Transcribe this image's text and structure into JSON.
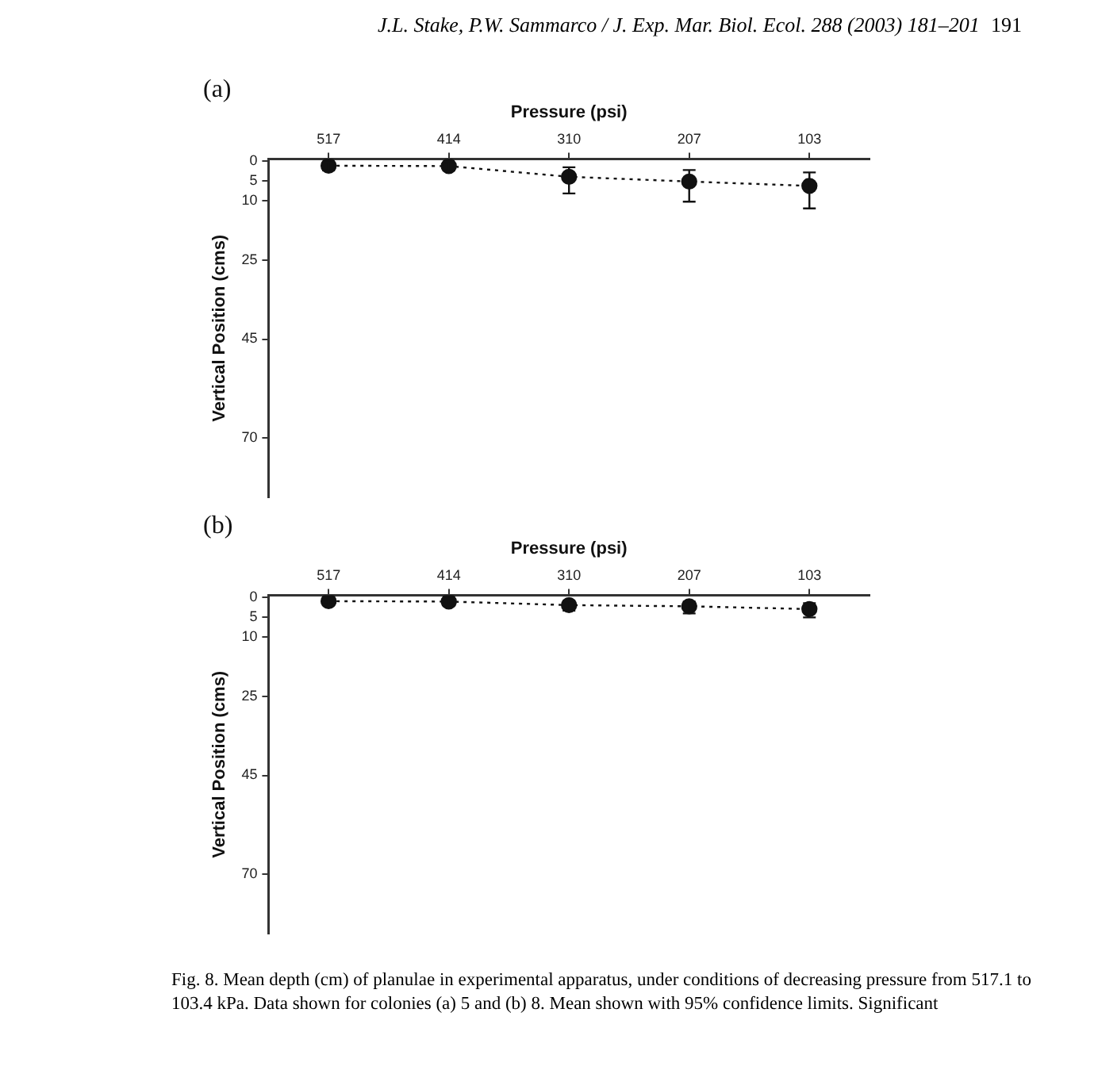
{
  "chart_data": [
    {
      "type": "line",
      "title": "(a)",
      "xlabel": "Pressure (psi)",
      "ylabel": "Vertical Position (cms)",
      "categories": [
        "517",
        "414",
        "310",
        "207",
        "103"
      ],
      "series": [
        {
          "color": "#111111",
          "values": [
            1.2,
            1.3,
            4.0,
            5.2,
            6.3
          ],
          "errors": [
            [
              0.4,
              2.4
            ],
            [
              0.5,
              2.4
            ],
            [
              1.6,
              8.2
            ],
            [
              2.3,
              10.3
            ],
            [
              2.9,
              12.0
            ]
          ]
        }
      ],
      "ylim": [
        85,
        -0.5
      ],
      "yticks": [
        0,
        5,
        10,
        25,
        45,
        70
      ],
      "marker": "circle",
      "line_style": "dotted",
      "grid": false,
      "legend": false,
      "annotations": [
        "J.L. Stake, P.W. Sammarco / J. Exp. Mar. Biol. Ecol. 288 (2003) 181–201",
        "191"
      ]
    },
    {
      "type": "line",
      "title": "(b)",
      "xlabel": "Pressure (psi)",
      "ylabel": "Vertical Position (cms)",
      "categories": [
        "517",
        "414",
        "310",
        "207",
        "103"
      ],
      "series": [
        {
          "color": "#111111",
          "values": [
            1.0,
            1.1,
            2.0,
            2.3,
            3.0
          ],
          "errors": [
            [
              0.45,
              1.8
            ],
            [
              0.4,
              2.0
            ],
            [
              0.9,
              3.4
            ],
            [
              1.1,
              4.1
            ],
            [
              1.5,
              5.1
            ]
          ]
        }
      ],
      "ylim": [
        85,
        -0.5
      ],
      "yticks": [
        0,
        5,
        10,
        25,
        45,
        70
      ],
      "marker": "circle",
      "line_style": "dotted",
      "grid": false,
      "legend": false,
      "annotations": [
        "Fig. 8. Mean depth (cm) of planulae in experimental apparatus, under conditions of decreasing pressure from 517.1 to 103.4 kPa. Data shown for colonies (a) 5 and (b) 8. Mean shown with 95% confidence limits. Significant"
      ]
    }
  ]
}
